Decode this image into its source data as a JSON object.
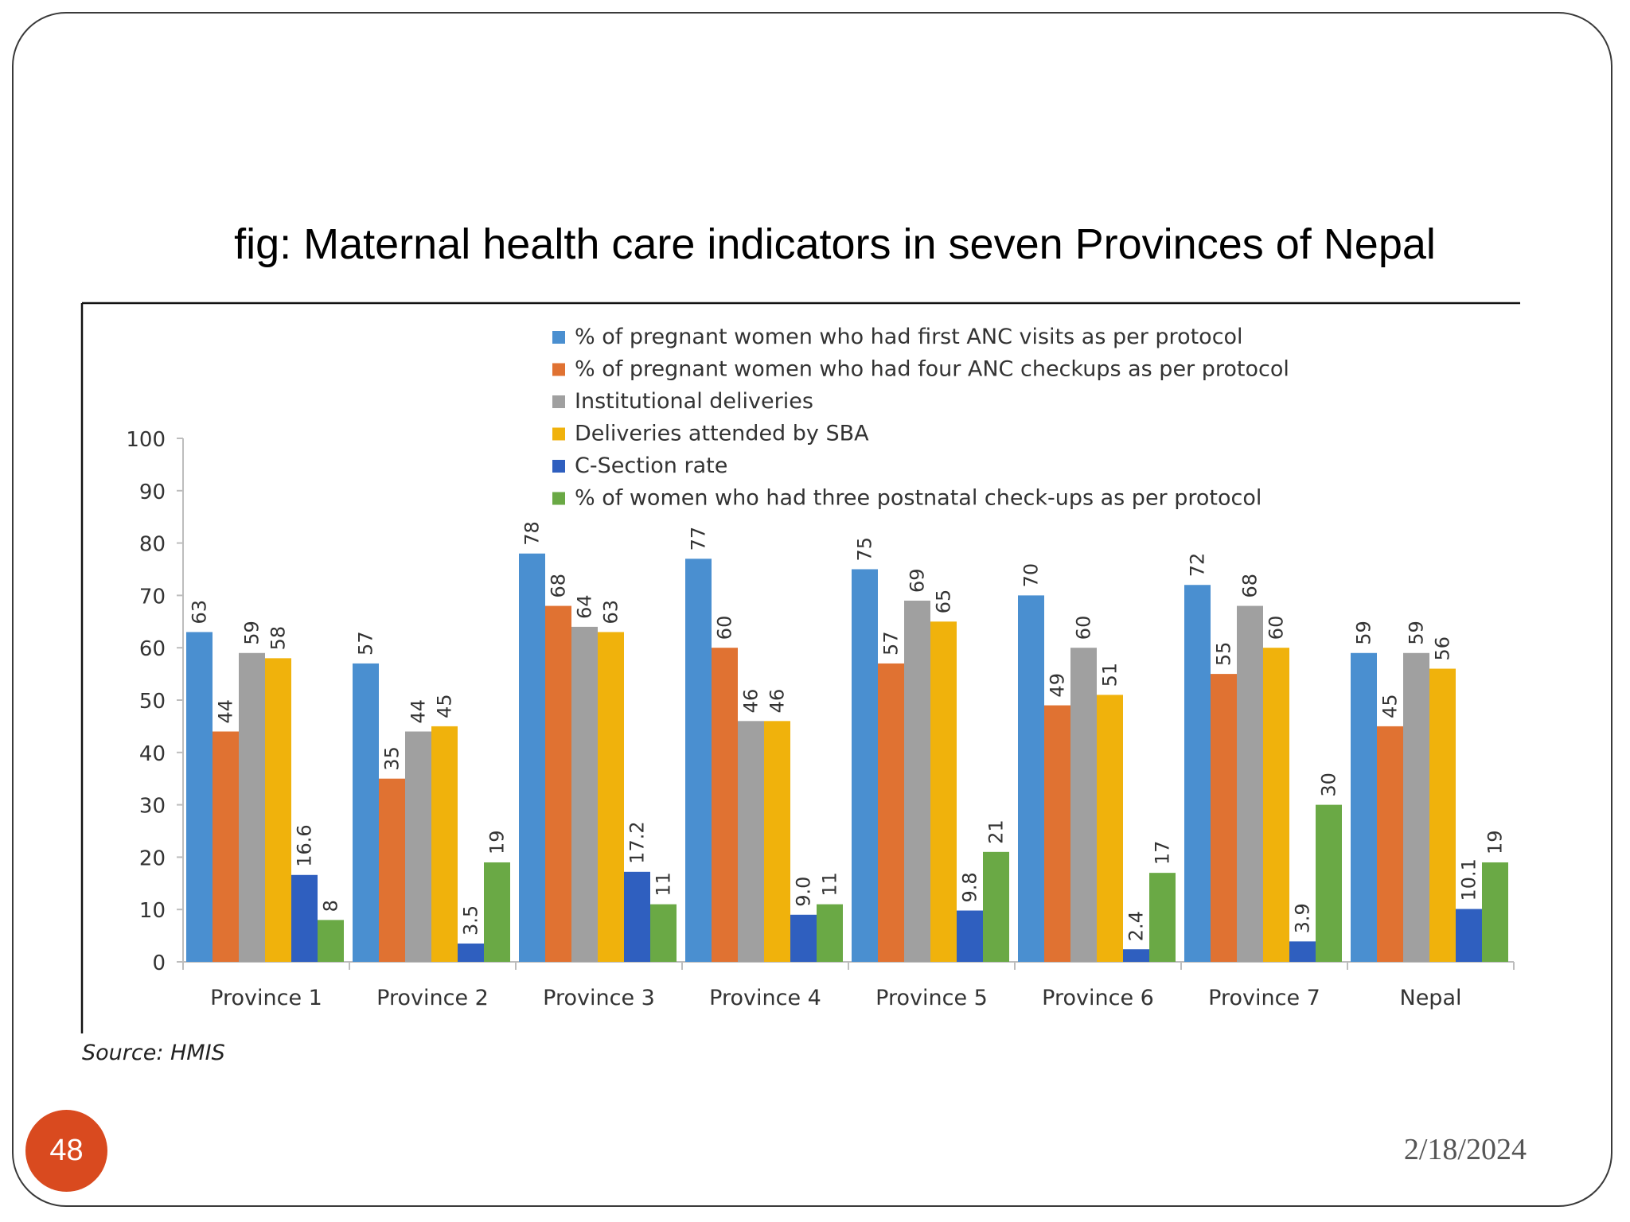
{
  "slide": {
    "title": "fig: Maternal health care indicators in seven Provinces of Nepal",
    "source": "Source: HMIS",
    "page_number": "48",
    "date": "2/18/2024",
    "accent_color": "#d94a1f"
  },
  "chart_data": {
    "type": "bar",
    "categories": [
      "Province 1",
      "Province 2",
      "Province 3",
      "Province 4",
      "Province 5",
      "Province 6",
      "Province 7",
      "Nepal"
    ],
    "ylim": [
      0,
      100
    ],
    "yticks": [
      0,
      10,
      20,
      30,
      40,
      50,
      60,
      70,
      80,
      90,
      100
    ],
    "grid": false,
    "legend_position": "top-right",
    "series": [
      {
        "name": "% of pregnant women who had first ANC visits as per  protocol",
        "color": "#4a8fd0",
        "values": [
          63,
          57,
          78,
          77,
          75,
          70,
          72,
          59
        ],
        "labels": [
          "63",
          "57",
          "78",
          "77",
          "75",
          "70",
          "72",
          "59"
        ]
      },
      {
        "name": "% of pregnant women who had four ANC checkups as per  protocol",
        "color": "#e07232",
        "values": [
          44,
          35,
          68,
          60,
          57,
          49,
          55,
          45
        ],
        "labels": [
          "44",
          "35",
          "68",
          "60",
          "57",
          "49",
          "55",
          "45"
        ]
      },
      {
        "name": "Institutional deliveries",
        "color": "#a0a0a0",
        "values": [
          59,
          44,
          64,
          46,
          69,
          60,
          68,
          59
        ],
        "labels": [
          "59",
          "44",
          "64",
          "46",
          "69",
          "60",
          "68",
          "59"
        ]
      },
      {
        "name": "Deliveries attended by SBA",
        "color": "#f0b20c",
        "values": [
          58,
          45,
          63,
          46,
          65,
          51,
          60,
          56
        ],
        "labels": [
          "58",
          "45",
          "63",
          "46",
          "65",
          "51",
          "60",
          "56"
        ]
      },
      {
        "name": "C-Section rate",
        "color": "#2f5fbf",
        "values": [
          16.6,
          3.5,
          17.2,
          9.0,
          9.8,
          2.4,
          3.9,
          10.1
        ],
        "labels": [
          "16.6",
          "3.5",
          "17.2",
          "9.0",
          "9.8",
          "2.4",
          "3.9",
          "10.1"
        ]
      },
      {
        "name": "% of women who had three postnatal check-ups as per protocol",
        "color": "#6aa945",
        "values": [
          8,
          19,
          11,
          11,
          21,
          17,
          30,
          19
        ],
        "labels": [
          "8",
          "19",
          "11",
          "11",
          "21",
          "17",
          "30",
          "19"
        ]
      }
    ]
  }
}
